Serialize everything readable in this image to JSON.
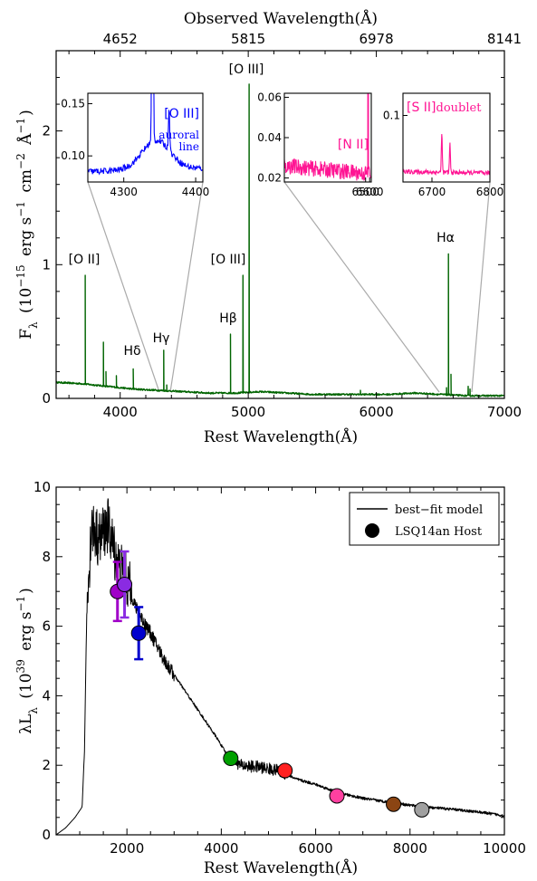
{
  "chart_data": [
    {
      "type": "line",
      "ylabel": "F",
      "ylabel_sub": "λ",
      "ylabel_rest": "(10",
      "ylabel_exp": "−15",
      "ylabel_units": "erg s",
      "ylabel_units_exp": "−1",
      "ylabel_cm": "cm",
      "ylabel_cm_exp": "−2",
      "ylabel_A": "Å",
      "ylabel_A_exp": "−1",
      "ylabel_close": ")",
      "xlabel": "Rest Wavelength(Å)",
      "x2label": "Observed Wavelength(Å)",
      "xlim": [
        3500,
        7000
      ],
      "ylim": [
        0,
        2.6
      ],
      "x_ticks": [
        "4000",
        "5000",
        "6000",
        "7000"
      ],
      "x_tick_values": [
        4000,
        5000,
        6000,
        7000
      ],
      "y_ticks": [
        "0",
        "1",
        "2"
      ],
      "y_tick_values": [
        0,
        1,
        2
      ],
      "x2_ticks": [
        "4652",
        "5815",
        "6978",
        "8141"
      ],
      "x2_tick_values": [
        4000,
        5000,
        6000,
        7000
      ],
      "continuum": [
        [
          3500,
          0.12
        ],
        [
          3700,
          0.11
        ],
        [
          3900,
          0.09
        ],
        [
          4100,
          0.07
        ],
        [
          4300,
          0.06
        ],
        [
          4500,
          0.05
        ],
        [
          4700,
          0.04
        ],
        [
          4900,
          0.04
        ],
        [
          5100,
          0.05
        ],
        [
          5300,
          0.04
        ],
        [
          5500,
          0.03
        ],
        [
          5700,
          0.03
        ],
        [
          5900,
          0.03
        ],
        [
          6100,
          0.03
        ],
        [
          6300,
          0.04
        ],
        [
          6500,
          0.03
        ],
        [
          6700,
          0.02
        ],
        [
          7000,
          0.02
        ]
      ],
      "lines": [
        {
          "x": 3727,
          "y": 0.92,
          "label": "[O II]"
        },
        {
          "x": 3869,
          "y": 0.42
        },
        {
          "x": 3889,
          "y": 0.2
        },
        {
          "x": 3970,
          "y": 0.17
        },
        {
          "x": 4102,
          "y": 0.22,
          "label": "Hδ"
        },
        {
          "x": 4340,
          "y": 0.36,
          "label": "Hγ"
        },
        {
          "x": 4363,
          "y": 0.1
        },
        {
          "x": 4861,
          "y": 0.48,
          "label": "Hβ"
        },
        {
          "x": 4959,
          "y": 0.92,
          "label": "[O III]"
        },
        {
          "x": 5007,
          "y": 2.35,
          "label": "[O III]"
        },
        {
          "x": 5876,
          "y": 0.06
        },
        {
          "x": 6300,
          "y": 0.04
        },
        {
          "x": 6548,
          "y": 0.08
        },
        {
          "x": 6563,
          "y": 1.08,
          "label": "Hα"
        },
        {
          "x": 6583,
          "y": 0.18
        },
        {
          "x": 6717,
          "y": 0.09
        },
        {
          "x": 6731,
          "y": 0.07
        }
      ],
      "color": "#006400",
      "insets": [
        {
          "name": "oiii-auroral",
          "label": "[O III]",
          "note_line1": "auroral",
          "note_line2": "line",
          "color": "#0000ff",
          "xlim": [
            4250,
            4410
          ],
          "ylim": [
            0.075,
            0.16
          ],
          "x_ticks": [
            "4300",
            "4400"
          ],
          "x_tick_values": [
            4300,
            4400
          ],
          "y_ticks": [
            "0.10",
            "0.15"
          ],
          "y_tick_values": [
            0.1,
            0.15
          ],
          "baseline_start": 0.085,
          "baseline_end": 0.088,
          "peaks": [
            {
              "x": 4340,
              "y": 0.55,
              "w": 1.2
            },
            {
              "x": 4363,
              "y": 0.126,
              "w": 1.2
            }
          ],
          "bumps": [
            {
              "x": 4345,
              "h": 0.028,
              "w": 28
            }
          ],
          "noise": 0.003
        },
        {
          "name": "nii-halpha",
          "label": "[N II]",
          "color": "#ff1493",
          "xlim": [
            4500,
            6640
          ],
          "ylim": [
            0.018,
            0.062
          ],
          "x_ticks": [
            "6500",
            "6600"
          ],
          "x_tick_values": [
            6500,
            6600
          ],
          "y_ticks": [
            "0.02",
            "0.04",
            "0.06"
          ],
          "y_tick_values": [
            0.02,
            0.04,
            0.06
          ],
          "baseline_start": 0.026,
          "baseline_end": 0.022,
          "peaks": [
            {
              "x": 6563,
              "y": 0.9,
              "w": 1.0
            },
            {
              "x": 6548,
              "y": 0.034,
              "w": 1.0
            },
            {
              "x": 6583,
              "y": 0.05,
              "w": 1.0
            }
          ],
          "bumps": [],
          "noise": 0.004
        },
        {
          "name": "sii-doublet",
          "label": "[S II]",
          "label2": "doublet",
          "color": "#ff1493",
          "xlim": [
            6650,
            6800
          ],
          "ylim": [
            0.055,
            0.115
          ],
          "x_ticks": [
            "6700",
            "6800"
          ],
          "x_tick_values": [
            6700,
            6800
          ],
          "y_ticks": [
            "0.1"
          ],
          "y_tick_values": [
            0.1
          ],
          "baseline_start": 0.062,
          "baseline_end": 0.061,
          "peaks": [
            {
              "x": 6717,
              "y": 0.09,
              "w": 1.1
            },
            {
              "x": 6731,
              "y": 0.082,
              "w": 1.1
            }
          ],
          "bumps": [],
          "noise": 0.0015
        }
      ]
    },
    {
      "type": "line",
      "ylabel": "λL",
      "ylabel_sub": "λ",
      "ylabel_rest": "(10",
      "ylabel_exp": "39",
      "ylabel_units": "erg s",
      "ylabel_units_exp": "−1",
      "ylabel_close": ")",
      "xlabel": "Rest Wavelength(Å)",
      "xlim": [
        500,
        10000
      ],
      "ylim": [
        0,
        10
      ],
      "x_ticks": [
        "2000",
        "4000",
        "6000",
        "8000",
        "10000"
      ],
      "x_tick_values": [
        2000,
        4000,
        6000,
        8000,
        10000
      ],
      "y_ticks": [
        "0",
        "2",
        "4",
        "6",
        "8",
        "10"
      ],
      "y_tick_values": [
        0,
        2,
        4,
        6,
        8,
        10
      ],
      "legend": {
        "model": "best−fit model",
        "points": "LSQ14an Host",
        "position": "top-right"
      },
      "model": [
        [
          500,
          0.0
        ],
        [
          700,
          0.2
        ],
        [
          900,
          0.5
        ],
        [
          1050,
          0.8
        ],
        [
          1100,
          2.4
        ],
        [
          1150,
          6.5
        ],
        [
          1250,
          8.9
        ],
        [
          1400,
          8.5
        ],
        [
          1600,
          8.9
        ],
        [
          1800,
          7.8
        ],
        [
          2000,
          7.3
        ],
        [
          2200,
          6.5
        ],
        [
          2500,
          5.8
        ],
        [
          2800,
          5.0
        ],
        [
          3200,
          4.2
        ],
        [
          3600,
          3.4
        ],
        [
          3900,
          2.8
        ],
        [
          4100,
          2.35
        ],
        [
          4400,
          2.0
        ],
        [
          4800,
          1.95
        ],
        [
          5200,
          1.85
        ],
        [
          5600,
          1.6
        ],
        [
          6000,
          1.45
        ],
        [
          6500,
          1.2
        ],
        [
          7000,
          1.05
        ],
        [
          7500,
          0.95
        ],
        [
          8000,
          0.85
        ],
        [
          8500,
          0.78
        ],
        [
          9000,
          0.72
        ],
        [
          9500,
          0.65
        ],
        [
          10000,
          0.55
        ]
      ],
      "photometry": [
        {
          "x": 1800,
          "y": 7.0,
          "err": 0.85,
          "color": "#a000c8"
        },
        {
          "x": 1950,
          "y": 7.2,
          "err": 0.95,
          "color": "#8a2be2"
        },
        {
          "x": 2250,
          "y": 5.8,
          "err": 0.75,
          "color": "#0000cd"
        },
        {
          "x": 4200,
          "y": 2.2,
          "err": 0.0,
          "color": "#00a000"
        },
        {
          "x": 5350,
          "y": 1.85,
          "err": 0.0,
          "color": "#ff2020"
        },
        {
          "x": 6450,
          "y": 1.12,
          "err": 0.0,
          "color": "#ff40a0"
        },
        {
          "x": 7650,
          "y": 0.88,
          "err": 0.0,
          "color": "#8b4513"
        },
        {
          "x": 8250,
          "y": 0.72,
          "err": 0.0,
          "color": "#a0a0a0"
        }
      ]
    }
  ]
}
